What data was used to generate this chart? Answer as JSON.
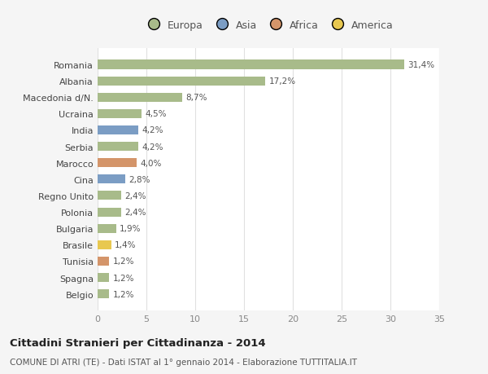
{
  "categories": [
    "Romania",
    "Albania",
    "Macedonia d/N.",
    "Ucraina",
    "India",
    "Serbia",
    "Marocco",
    "Cina",
    "Regno Unito",
    "Polonia",
    "Bulgaria",
    "Brasile",
    "Tunisia",
    "Spagna",
    "Belgio"
  ],
  "values": [
    31.4,
    17.2,
    8.7,
    4.5,
    4.2,
    4.2,
    4.0,
    2.8,
    2.4,
    2.4,
    1.9,
    1.4,
    1.2,
    1.2,
    1.2
  ],
  "labels": [
    "31,4%",
    "17,2%",
    "8,7%",
    "4,5%",
    "4,2%",
    "4,2%",
    "4,0%",
    "2,8%",
    "2,4%",
    "2,4%",
    "1,9%",
    "1,4%",
    "1,2%",
    "1,2%",
    "1,2%"
  ],
  "continents": [
    "Europa",
    "Europa",
    "Europa",
    "Europa",
    "Asia",
    "Europa",
    "Africa",
    "Asia",
    "Europa",
    "Europa",
    "Europa",
    "America",
    "Africa",
    "Europa",
    "Europa"
  ],
  "colors": {
    "Europa": "#a8bb8a",
    "Asia": "#7b9dc4",
    "Africa": "#d4956a",
    "America": "#e8c850"
  },
  "legend_colors": {
    "Europa": "#a8bb8a",
    "Asia": "#7b9dc4",
    "Africa": "#d4956a",
    "America": "#e8c850"
  },
  "title": "Cittadini Stranieri per Cittadinanza - 2014",
  "subtitle": "COMUNE DI ATRI (TE) - Dati ISTAT al 1° gennaio 2014 - Elaborazione TUTTITALIA.IT",
  "xlim": [
    0,
    35
  ],
  "xticks": [
    0,
    5,
    10,
    15,
    20,
    25,
    30,
    35
  ],
  "background_color": "#f5f5f5",
  "plot_bg_color": "#ffffff",
  "grid_color": "#e0e0e0",
  "bar_height": 0.55
}
